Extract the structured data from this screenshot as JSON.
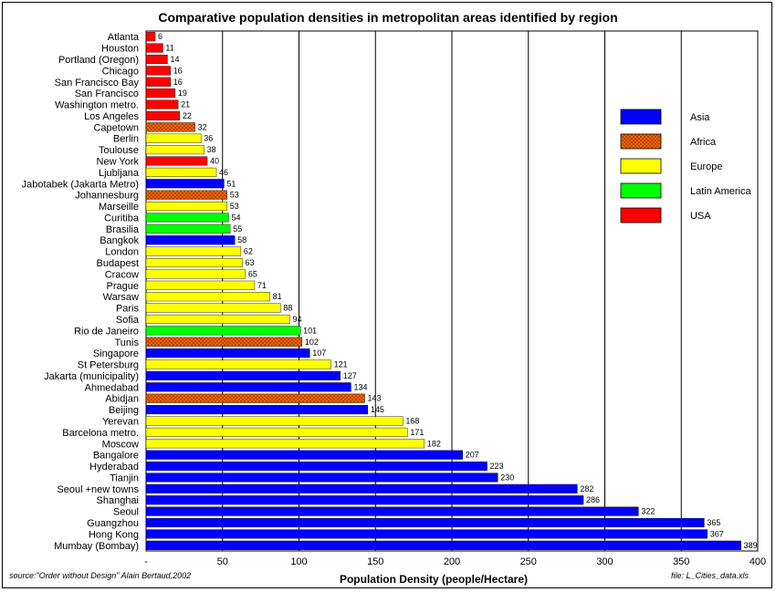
{
  "chart_data": {
    "type": "bar",
    "orientation": "horizontal",
    "title": "Comparative  population densities  in metropolitan areas identified by region",
    "xlabel": "Population Density (people/Hectare)",
    "ylabel": "",
    "xlim": [
      0,
      400
    ],
    "xticks": [
      0,
      50,
      100,
      150,
      200,
      250,
      300,
      350,
      400
    ],
    "xtick_labels": [
      "-",
      "50",
      "100",
      "150",
      "200",
      "250",
      "300",
      "350",
      "400"
    ],
    "grid": "vertical",
    "legend_position": "right",
    "legend": [
      {
        "name": "Asia",
        "color": "#0000FF",
        "pattern": "solid"
      },
      {
        "name": "Africa",
        "color": "#FF6600",
        "pattern": "crosshatch"
      },
      {
        "name": "Europe",
        "color": "#FFFF00",
        "pattern": "solid"
      },
      {
        "name": "Latin America",
        "color": "#00FF00",
        "pattern": "solid"
      },
      {
        "name": "USA",
        "color": "#FF0000",
        "pattern": "solid"
      }
    ],
    "bars": [
      {
        "label": "Atlanta",
        "value": 6,
        "region": "USA"
      },
      {
        "label": "Houston",
        "value": 11,
        "region": "USA"
      },
      {
        "label": "Portland (Oregon)",
        "value": 14,
        "region": "USA"
      },
      {
        "label": "Chicago",
        "value": 16,
        "region": "USA"
      },
      {
        "label": "San Francisco Bay",
        "value": 16,
        "region": "USA"
      },
      {
        "label": "San Francisco",
        "value": 19,
        "region": "USA"
      },
      {
        "label": "Washington metro.",
        "value": 21,
        "region": "USA"
      },
      {
        "label": "Los Angeles",
        "value": 22,
        "region": "USA"
      },
      {
        "label": "Capetown",
        "value": 32,
        "region": "Africa"
      },
      {
        "label": "Berlin",
        "value": 36,
        "region": "Europe"
      },
      {
        "label": "Toulouse",
        "value": 38,
        "region": "Europe"
      },
      {
        "label": "New York",
        "value": 40,
        "region": "USA"
      },
      {
        "label": "Ljubljana",
        "value": 46,
        "region": "Europe"
      },
      {
        "label": "Jabotabek (Jakarta Metro)",
        "value": 51,
        "region": "Asia"
      },
      {
        "label": "Johannesburg",
        "value": 53,
        "region": "Africa"
      },
      {
        "label": "Marseille",
        "value": 53,
        "region": "Europe"
      },
      {
        "label": "Curitiba",
        "value": 54,
        "region": "Latin America"
      },
      {
        "label": "Brasilia",
        "value": 55,
        "region": "Latin America"
      },
      {
        "label": "Bangkok",
        "value": 58,
        "region": "Asia"
      },
      {
        "label": "London",
        "value": 62,
        "region": "Europe"
      },
      {
        "label": "Budapest",
        "value": 63,
        "region": "Europe"
      },
      {
        "label": "Cracow",
        "value": 65,
        "region": "Europe"
      },
      {
        "label": "Prague",
        "value": 71,
        "region": "Europe"
      },
      {
        "label": "Warsaw",
        "value": 81,
        "region": "Europe"
      },
      {
        "label": "Paris",
        "value": 88,
        "region": "Europe"
      },
      {
        "label": "Sofia",
        "value": 94,
        "region": "Europe"
      },
      {
        "label": "Rio de Janeiro",
        "value": 101,
        "region": "Latin America"
      },
      {
        "label": "Tunis",
        "value": 102,
        "region": "Africa"
      },
      {
        "label": "Singapore",
        "value": 107,
        "region": "Asia"
      },
      {
        "label": "St Petersburg",
        "value": 121,
        "region": "Europe"
      },
      {
        "label": "Jakarta (municipality)",
        "value": 127,
        "region": "Asia"
      },
      {
        "label": "Ahmedabad",
        "value": 134,
        "region": "Asia"
      },
      {
        "label": "Abidjan",
        "value": 143,
        "region": "Africa"
      },
      {
        "label": "Beijing",
        "value": 145,
        "region": "Asia"
      },
      {
        "label": "Yerevan",
        "value": 168,
        "region": "Europe"
      },
      {
        "label": "Barcelona metro.",
        "value": 171,
        "region": "Europe"
      },
      {
        "label": "Moscow",
        "value": 182,
        "region": "Europe"
      },
      {
        "label": "Bangalore",
        "value": 207,
        "region": "Asia"
      },
      {
        "label": "Hyderabad",
        "value": 223,
        "region": "Asia"
      },
      {
        "label": "Tianjin",
        "value": 230,
        "region": "Asia"
      },
      {
        "label": "Seoul +new towns",
        "value": 282,
        "region": "Asia"
      },
      {
        "label": "Shanghai",
        "value": 286,
        "region": "Asia"
      },
      {
        "label": "Seoul",
        "value": 322,
        "region": "Asia"
      },
      {
        "label": "Guangzhou",
        "value": 365,
        "region": "Asia"
      },
      {
        "label": "Hong Kong",
        "value": 367,
        "region": "Asia"
      },
      {
        "label": "Mumbay (Bombay)",
        "value": 389,
        "region": "Asia"
      }
    ],
    "source_note": "source:\"Order without Design\" Alain Bertaud,2002",
    "file_note": "file: L_Cities_data.xls"
  }
}
